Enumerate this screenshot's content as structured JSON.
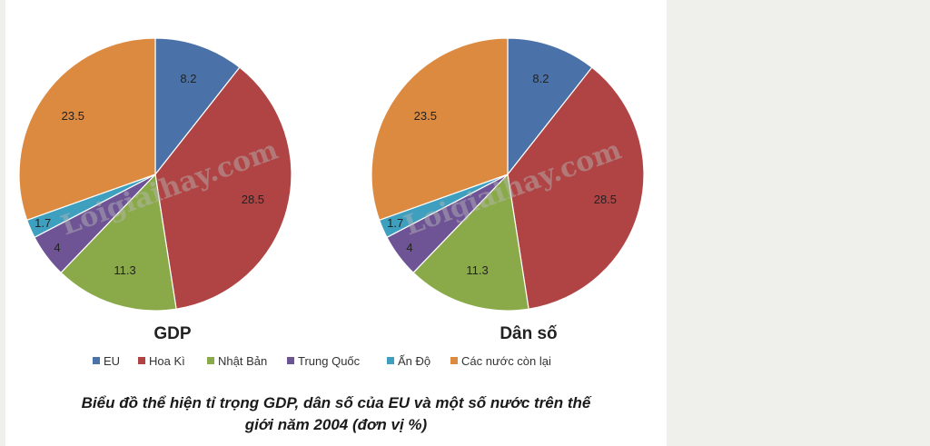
{
  "chart_data": [
    {
      "type": "pie",
      "title": "GDP",
      "categories": [
        "EU",
        "Hoa Kì",
        "Nhật Bản",
        "Trung Quốc",
        "Ấn Độ",
        "Các nước còn lại"
      ],
      "values": [
        8.2,
        28.5,
        11.3,
        4,
        1.7,
        23.5
      ],
      "value_labels": [
        "8.2",
        "28.5",
        "11.3",
        "4",
        "1.7",
        "23.5"
      ],
      "colors": [
        "#4a72a8",
        "#b04444",
        "#8aaa4a",
        "#6e5494",
        "#3f9fbf",
        "#dc8a40"
      ]
    },
    {
      "type": "pie",
      "title": "Dân số",
      "categories": [
        "EU",
        "Hoa Kì",
        "Nhật Bản",
        "Trung Quốc",
        "Ấn Độ",
        "Các nước còn lại"
      ],
      "values": [
        8.2,
        28.5,
        11.3,
        4,
        1.7,
        23.5
      ],
      "value_labels": [
        "8.2",
        "28.5",
        "11.3",
        "4",
        "1.7",
        "23.5"
      ],
      "colors": [
        "#4a72a8",
        "#b04444",
        "#8aaa4a",
        "#6e5494",
        "#3f9fbf",
        "#dc8a40"
      ]
    }
  ],
  "legend": {
    "placement": "bottom",
    "items": [
      {
        "label": "EU",
        "color": "#4a72a8"
      },
      {
        "label": "Hoa Kì",
        "color": "#b04444"
      },
      {
        "label": "Nhật Bản",
        "color": "#8aaa4a"
      },
      {
        "label": "Trung Quốc",
        "color": "#6e5494"
      },
      {
        "label": "Ấn Độ",
        "color": "#3f9fbf"
      },
      {
        "label": "Các nước còn lại",
        "color": "#dc8a40"
      }
    ]
  },
  "watermark": "Loigiaihay.com",
  "caption": {
    "line1": "Biểu đồ thể hiện tỉ trọng GDP, dân số của EU và một số nước trên thế",
    "line2": "giới năm 2004 (đơn vị %)"
  }
}
